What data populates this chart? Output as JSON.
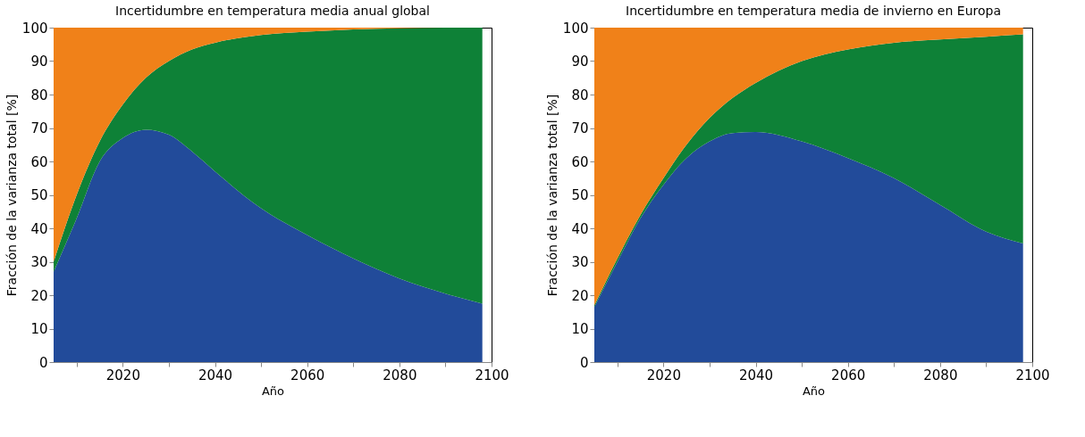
{
  "chart_data": [
    {
      "type": "area",
      "stacked": true,
      "title": "Incertidumbre en temperatura media anual global",
      "xlabel": "Año",
      "ylabel": "Fracción de la varianza total  [%]",
      "x": [
        2005,
        2010,
        2015,
        2020,
        2025,
        2030,
        2035,
        2040,
        2050,
        2060,
        2070,
        2080,
        2090,
        2098
      ],
      "series": [
        {
          "color": "#224b9a",
          "values": [
            27,
            43,
            60,
            67,
            69.5,
            68,
            63,
            57,
            46,
            38,
            31,
            25,
            20.5,
            17.5
          ]
        },
        {
          "color": "#0e8137",
          "values": [
            3,
            7,
            6,
            10,
            15.5,
            22,
            30.5,
            38.5,
            51.8,
            60.8,
            68.5,
            74.8,
            79.5,
            82.5
          ]
        },
        {
          "color": "#f08119",
          "values": [
            70,
            50,
            34,
            23,
            15,
            10,
            6.5,
            4.5,
            2.2,
            1.2,
            0.5,
            0.2,
            0,
            0
          ]
        }
      ],
      "xlim": [
        2005,
        2100
      ],
      "xticks": [
        {
          "value": 2010,
          "label": null
        },
        2020,
        {
          "value": 2030,
          "label": null
        },
        2040,
        {
          "value": 2050,
          "label": null
        },
        2060,
        {
          "value": 2070,
          "label": null
        },
        2080,
        {
          "value": 2090,
          "label": null
        },
        2100
      ],
      "ylim": [
        0,
        100
      ],
      "yticks": [
        0,
        10,
        20,
        30,
        40,
        50,
        60,
        70,
        80,
        90,
        100
      ],
      "grid": false,
      "legend": false
    },
    {
      "type": "area",
      "stacked": true,
      "title": "Incertidumbre en temperatura media de invierno en Europa",
      "xlabel": "Año",
      "ylabel": "Fracción de la varianza total  [%]",
      "x": [
        2005,
        2010,
        2015,
        2020,
        2025,
        2030,
        2035,
        2040,
        2050,
        2060,
        2070,
        2080,
        2090,
        2098
      ],
      "series": [
        {
          "color": "#224b9a",
          "values": [
            16.5,
            30,
            43,
            53,
            61,
            66,
            68.5,
            68.8,
            66,
            61,
            55,
            47,
            39,
            35.5
          ]
        },
        {
          "color": "#0e8137",
          "values": [
            0.5,
            1,
            1,
            2,
            4,
            7,
            10.5,
            14.7,
            24,
            32.5,
            40.5,
            49.5,
            58.3,
            62.5
          ]
        },
        {
          "color": "#f08119",
          "values": [
            83,
            69,
            56,
            45,
            35,
            27,
            21,
            16.5,
            10,
            6.5,
            4.5,
            3.5,
            2.7,
            2
          ]
        }
      ],
      "xlim": [
        2005,
        2100
      ],
      "xticks": [
        {
          "value": 2010,
          "label": null
        },
        2020,
        {
          "value": 2030,
          "label": null
        },
        2040,
        {
          "value": 2050,
          "label": null
        },
        2060,
        {
          "value": 2070,
          "label": null
        },
        2080,
        {
          "value": 2090,
          "label": null
        },
        2100
      ],
      "ylim": [
        0,
        100
      ],
      "yticks": [
        0,
        10,
        20,
        30,
        40,
        50,
        60,
        70,
        80,
        90,
        100
      ],
      "grid": false,
      "legend": false
    }
  ]
}
